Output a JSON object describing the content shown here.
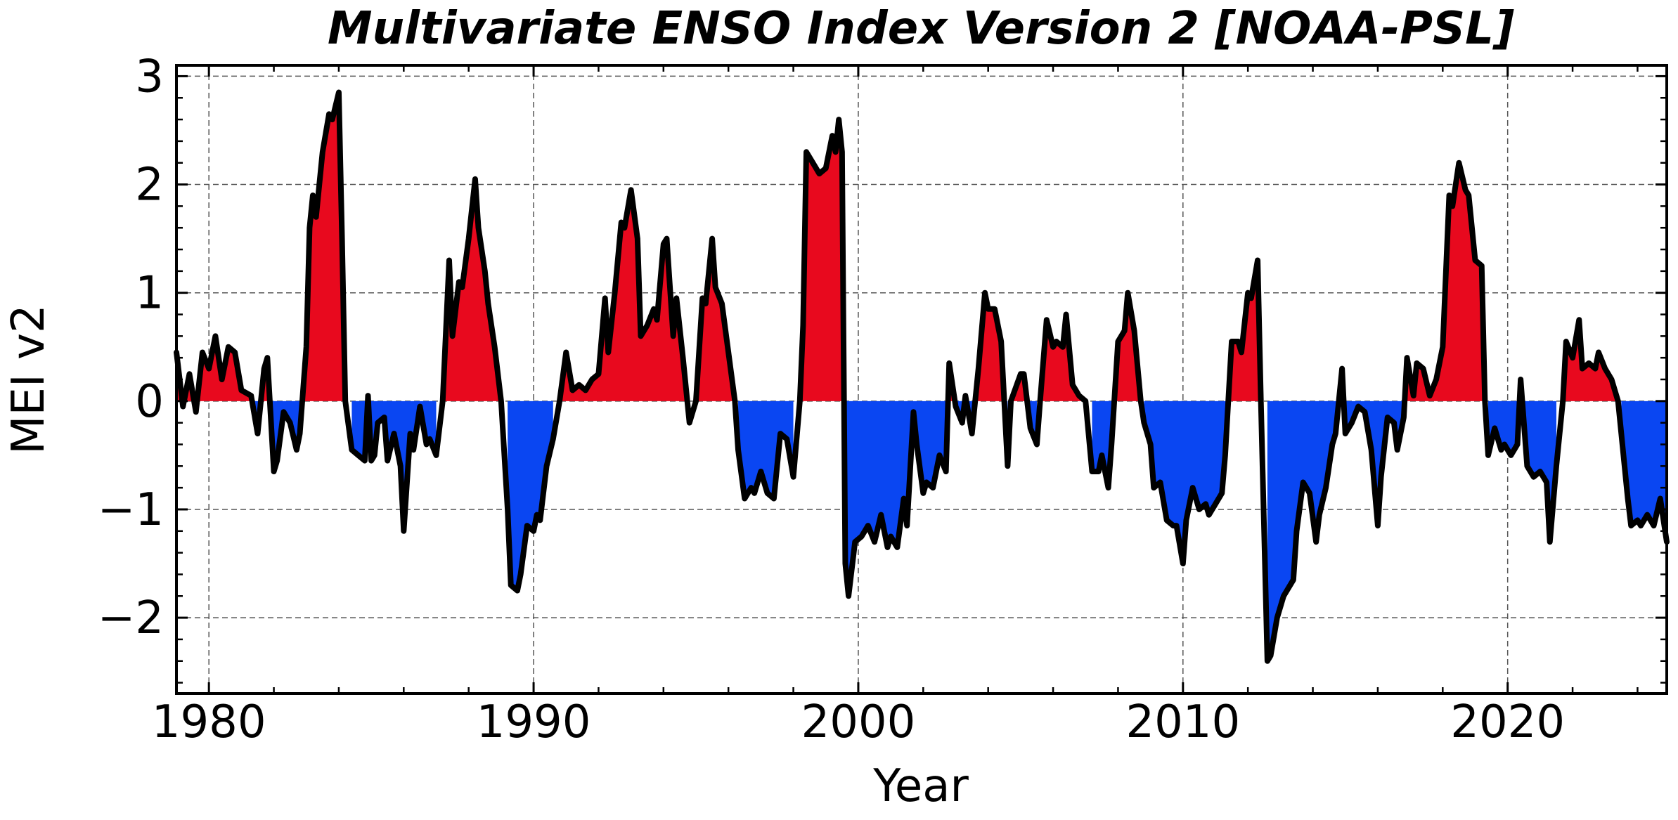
{
  "chart_data": {
    "type": "area",
    "title": "Multivariate ENSO Index Version 2 [NOAA-PSL]",
    "xlabel": "Year",
    "ylabel": "MEI v2",
    "xlim": [
      1979.0,
      2024.9
    ],
    "ylim": [
      -2.7,
      3.1
    ],
    "x_ticks": [
      1980,
      1990,
      2000,
      2010,
      2020
    ],
    "x_tick_labels": [
      "1980",
      "1990",
      "2000",
      "2010",
      "2020"
    ],
    "y_ticks": [
      3,
      2,
      1,
      0,
      -1,
      -2
    ],
    "y_tick_labels": [
      "3",
      "2",
      "1",
      "0",
      "−1",
      "−2"
    ],
    "grid": true,
    "baseline": 0,
    "colors": {
      "positive": "#e8091e",
      "negative": "#0a46f2",
      "line": "#000000"
    },
    "series": [
      {
        "values": [
          [
            1979.0,
            0.45
          ],
          [
            1979.2,
            -0.05
          ],
          [
            1979.4,
            0.25
          ],
          [
            1979.6,
            -0.1
          ],
          [
            1979.8,
            0.45
          ],
          [
            1980.0,
            0.3
          ],
          [
            1980.2,
            0.6
          ],
          [
            1980.4,
            0.2
          ],
          [
            1980.6,
            0.5
          ],
          [
            1980.8,
            0.45
          ],
          [
            1981.0,
            0.1
          ],
          [
            1981.3,
            0.05
          ],
          [
            1981.5,
            -0.3
          ],
          [
            1981.7,
            0.3
          ],
          [
            1981.8,
            0.4
          ],
          [
            1982.0,
            -0.65
          ],
          [
            1982.1,
            -0.55
          ],
          [
            1982.3,
            -0.1
          ],
          [
            1982.5,
            -0.2
          ],
          [
            1982.7,
            -0.45
          ],
          [
            1982.8,
            -0.3
          ],
          [
            1983.0,
            0.5
          ],
          [
            1983.1,
            1.6
          ],
          [
            1983.2,
            1.9
          ],
          [
            1983.3,
            1.7
          ],
          [
            1983.5,
            2.3
          ],
          [
            1983.7,
            2.65
          ],
          [
            1983.8,
            2.6
          ],
          [
            1984.0,
            2.85
          ],
          [
            1984.1,
            1.5
          ],
          [
            1984.2,
            0.0
          ],
          [
            1984.4,
            -0.45
          ],
          [
            1984.6,
            -0.5
          ],
          [
            1984.8,
            -0.55
          ],
          [
            1984.9,
            0.05
          ],
          [
            1985.0,
            -0.55
          ],
          [
            1985.1,
            -0.5
          ],
          [
            1985.2,
            -0.2
          ],
          [
            1985.4,
            -0.15
          ],
          [
            1985.5,
            -0.55
          ],
          [
            1985.7,
            -0.3
          ],
          [
            1985.9,
            -0.6
          ],
          [
            1986.0,
            -1.2
          ],
          [
            1986.2,
            -0.3
          ],
          [
            1986.3,
            -0.45
          ],
          [
            1986.5,
            -0.05
          ],
          [
            1986.7,
            -0.4
          ],
          [
            1986.8,
            -0.35
          ],
          [
            1987.0,
            -0.5
          ],
          [
            1987.2,
            0.0
          ],
          [
            1987.4,
            1.3
          ],
          [
            1987.5,
            0.6
          ],
          [
            1987.7,
            1.1
          ],
          [
            1987.8,
            1.05
          ],
          [
            1988.0,
            1.5
          ],
          [
            1988.2,
            2.05
          ],
          [
            1988.3,
            1.6
          ],
          [
            1988.5,
            1.2
          ],
          [
            1988.6,
            0.9
          ],
          [
            1988.8,
            0.5
          ],
          [
            1989.0,
            0.0
          ],
          [
            1989.2,
            -1.0
          ],
          [
            1989.3,
            -1.7
          ],
          [
            1989.5,
            -1.75
          ],
          [
            1989.6,
            -1.6
          ],
          [
            1989.8,
            -1.15
          ],
          [
            1990.0,
            -1.2
          ],
          [
            1990.1,
            -1.05
          ],
          [
            1990.2,
            -1.1
          ],
          [
            1990.4,
            -0.6
          ],
          [
            1990.6,
            -0.35
          ],
          [
            1990.8,
            0.0
          ],
          [
            1991.0,
            0.45
          ],
          [
            1991.2,
            0.1
          ],
          [
            1991.4,
            0.15
          ],
          [
            1991.6,
            0.1
          ],
          [
            1991.8,
            0.2
          ],
          [
            1992.0,
            0.25
          ],
          [
            1992.2,
            0.95
          ],
          [
            1992.3,
            0.45
          ],
          [
            1992.5,
            1.0
          ],
          [
            1992.7,
            1.65
          ],
          [
            1992.8,
            1.6
          ],
          [
            1993.0,
            1.95
          ],
          [
            1993.2,
            1.5
          ],
          [
            1993.3,
            0.6
          ],
          [
            1993.5,
            0.7
          ],
          [
            1993.7,
            0.85
          ],
          [
            1993.8,
            0.75
          ],
          [
            1994.0,
            1.45
          ],
          [
            1994.1,
            1.5
          ],
          [
            1994.3,
            0.6
          ],
          [
            1994.4,
            0.95
          ],
          [
            1994.6,
            0.4
          ],
          [
            1994.8,
            -0.2
          ],
          [
            1995.0,
            0.0
          ],
          [
            1995.2,
            0.95
          ],
          [
            1995.3,
            0.9
          ],
          [
            1995.5,
            1.5
          ],
          [
            1995.6,
            1.05
          ],
          [
            1995.8,
            0.9
          ],
          [
            1996.0,
            0.45
          ],
          [
            1996.2,
            0.0
          ],
          [
            1996.3,
            -0.45
          ],
          [
            1996.5,
            -0.9
          ],
          [
            1996.7,
            -0.8
          ],
          [
            1996.8,
            -0.85
          ],
          [
            1997.0,
            -0.65
          ],
          [
            1997.2,
            -0.85
          ],
          [
            1997.4,
            -0.9
          ],
          [
            1997.6,
            -0.3
          ],
          [
            1997.8,
            -0.35
          ],
          [
            1998.0,
            -0.7
          ],
          [
            1998.2,
            0.0
          ],
          [
            1998.3,
            0.7
          ],
          [
            1998.4,
            2.3
          ],
          [
            1998.6,
            2.2
          ],
          [
            1998.8,
            2.1
          ],
          [
            1999.0,
            2.15
          ],
          [
            1999.2,
            2.45
          ],
          [
            1999.3,
            2.3
          ],
          [
            1999.4,
            2.6
          ],
          [
            1999.5,
            2.3
          ],
          [
            1999.6,
            -1.5
          ],
          [
            1999.7,
            -1.8
          ],
          [
            1999.9,
            -1.3
          ],
          [
            2000.1,
            -1.25
          ],
          [
            2000.3,
            -1.15
          ],
          [
            2000.5,
            -1.3
          ],
          [
            2000.7,
            -1.05
          ],
          [
            2000.9,
            -1.35
          ],
          [
            2001.0,
            -1.25
          ],
          [
            2001.2,
            -1.35
          ],
          [
            2001.4,
            -0.9
          ],
          [
            2001.5,
            -1.15
          ],
          [
            2001.7,
            -0.1
          ],
          [
            2001.8,
            -0.4
          ],
          [
            2002.0,
            -0.85
          ],
          [
            2002.1,
            -0.75
          ],
          [
            2002.3,
            -0.8
          ],
          [
            2002.5,
            -0.5
          ],
          [
            2002.7,
            -0.65
          ],
          [
            2002.8,
            0.35
          ],
          [
            2003.0,
            -0.05
          ],
          [
            2003.2,
            -0.2
          ],
          [
            2003.3,
            0.05
          ],
          [
            2003.5,
            -0.3
          ],
          [
            2003.7,
            0.3
          ],
          [
            2003.9,
            1.0
          ],
          [
            2004.0,
            0.85
          ],
          [
            2004.2,
            0.85
          ],
          [
            2004.4,
            0.55
          ],
          [
            2004.6,
            -0.6
          ],
          [
            2004.7,
            0.0
          ],
          [
            2005.0,
            0.25
          ],
          [
            2005.1,
            0.25
          ],
          [
            2005.3,
            -0.25
          ],
          [
            2005.5,
            -0.4
          ],
          [
            2005.6,
            0.0
          ],
          [
            2005.8,
            0.75
          ],
          [
            2006.0,
            0.5
          ],
          [
            2006.1,
            0.55
          ],
          [
            2006.3,
            0.5
          ],
          [
            2006.4,
            0.8
          ],
          [
            2006.6,
            0.15
          ],
          [
            2006.8,
            0.05
          ],
          [
            2007.0,
            0.0
          ],
          [
            2007.2,
            -0.65
          ],
          [
            2007.4,
            -0.65
          ],
          [
            2007.5,
            -0.5
          ],
          [
            2007.7,
            -0.8
          ],
          [
            2007.8,
            -0.4
          ],
          [
            2008.0,
            0.55
          ],
          [
            2008.2,
            0.65
          ],
          [
            2008.3,
            1.0
          ],
          [
            2008.5,
            0.65
          ],
          [
            2008.7,
            0.0
          ],
          [
            2008.8,
            -0.2
          ],
          [
            2009.0,
            -0.4
          ],
          [
            2009.1,
            -0.8
          ],
          [
            2009.3,
            -0.75
          ],
          [
            2009.5,
            -1.1
          ],
          [
            2009.7,
            -1.15
          ],
          [
            2009.8,
            -1.15
          ],
          [
            2010.0,
            -1.5
          ],
          [
            2010.1,
            -1.1
          ],
          [
            2010.3,
            -0.8
          ],
          [
            2010.5,
            -1.0
          ],
          [
            2010.7,
            -0.95
          ],
          [
            2010.8,
            -1.05
          ],
          [
            2011.0,
            -0.95
          ],
          [
            2011.2,
            -0.85
          ],
          [
            2011.3,
            -0.5
          ],
          [
            2011.5,
            0.55
          ],
          [
            2011.7,
            0.55
          ],
          [
            2011.8,
            0.45
          ],
          [
            2012.0,
            1.0
          ],
          [
            2012.1,
            0.95
          ],
          [
            2012.3,
            1.3
          ],
          [
            2012.4,
            0.0
          ],
          [
            2012.6,
            -2.4
          ],
          [
            2012.7,
            -2.35
          ],
          [
            2012.9,
            -2.0
          ],
          [
            2013.1,
            -1.8
          ],
          [
            2013.2,
            -1.75
          ],
          [
            2013.4,
            -1.65
          ],
          [
            2013.5,
            -1.2
          ],
          [
            2013.7,
            -0.75
          ],
          [
            2013.9,
            -0.85
          ],
          [
            2014.1,
            -1.3
          ],
          [
            2014.2,
            -1.05
          ],
          [
            2014.4,
            -0.8
          ],
          [
            2014.6,
            -0.4
          ],
          [
            2014.7,
            -0.3
          ],
          [
            2014.9,
            0.3
          ],
          [
            2015.0,
            -0.3
          ],
          [
            2015.2,
            -0.2
          ],
          [
            2015.4,
            -0.05
          ],
          [
            2015.6,
            -0.1
          ],
          [
            2015.8,
            -0.45
          ],
          [
            2016.0,
            -1.15
          ],
          [
            2016.1,
            -0.7
          ],
          [
            2016.3,
            -0.15
          ],
          [
            2016.5,
            -0.2
          ],
          [
            2016.6,
            -0.45
          ],
          [
            2016.8,
            -0.15
          ],
          [
            2016.9,
            0.4
          ],
          [
            2017.1,
            0.05
          ],
          [
            2017.2,
            0.35
          ],
          [
            2017.4,
            0.3
          ],
          [
            2017.6,
            0.05
          ],
          [
            2017.8,
            0.2
          ],
          [
            2018.0,
            0.5
          ],
          [
            2018.2,
            1.9
          ],
          [
            2018.3,
            1.8
          ],
          [
            2018.5,
            2.2
          ],
          [
            2018.7,
            1.95
          ],
          [
            2018.8,
            1.9
          ],
          [
            2019.0,
            1.3
          ],
          [
            2019.2,
            1.25
          ],
          [
            2019.3,
            0.0
          ],
          [
            2019.4,
            -0.5
          ],
          [
            2019.6,
            -0.25
          ],
          [
            2019.8,
            -0.45
          ],
          [
            2019.9,
            -0.4
          ],
          [
            2020.1,
            -0.5
          ],
          [
            2020.3,
            -0.4
          ],
          [
            2020.4,
            0.2
          ],
          [
            2020.6,
            -0.6
          ],
          [
            2020.8,
            -0.7
          ],
          [
            2021.0,
            -0.65
          ],
          [
            2021.2,
            -0.75
          ],
          [
            2021.3,
            -1.3
          ],
          [
            2021.5,
            -0.6
          ],
          [
            2021.7,
            0.0
          ],
          [
            2021.8,
            0.55
          ],
          [
            2022.0,
            0.4
          ],
          [
            2022.2,
            0.75
          ],
          [
            2022.3,
            0.3
          ],
          [
            2022.5,
            0.35
          ],
          [
            2022.7,
            0.3
          ],
          [
            2022.8,
            0.45
          ],
          [
            2023.0,
            0.3
          ],
          [
            2023.2,
            0.2
          ],
          [
            2023.4,
            0.0
          ],
          [
            2023.5,
            -0.3
          ],
          [
            2023.7,
            -0.9
          ],
          [
            2023.8,
            -1.15
          ],
          [
            2024.0,
            -1.1
          ],
          [
            2024.1,
            -1.15
          ],
          [
            2024.3,
            -1.05
          ],
          [
            2024.5,
            -1.15
          ],
          [
            2024.7,
            -0.9
          ],
          [
            2024.9,
            -1.3
          ]
        ]
      }
    ]
  }
}
